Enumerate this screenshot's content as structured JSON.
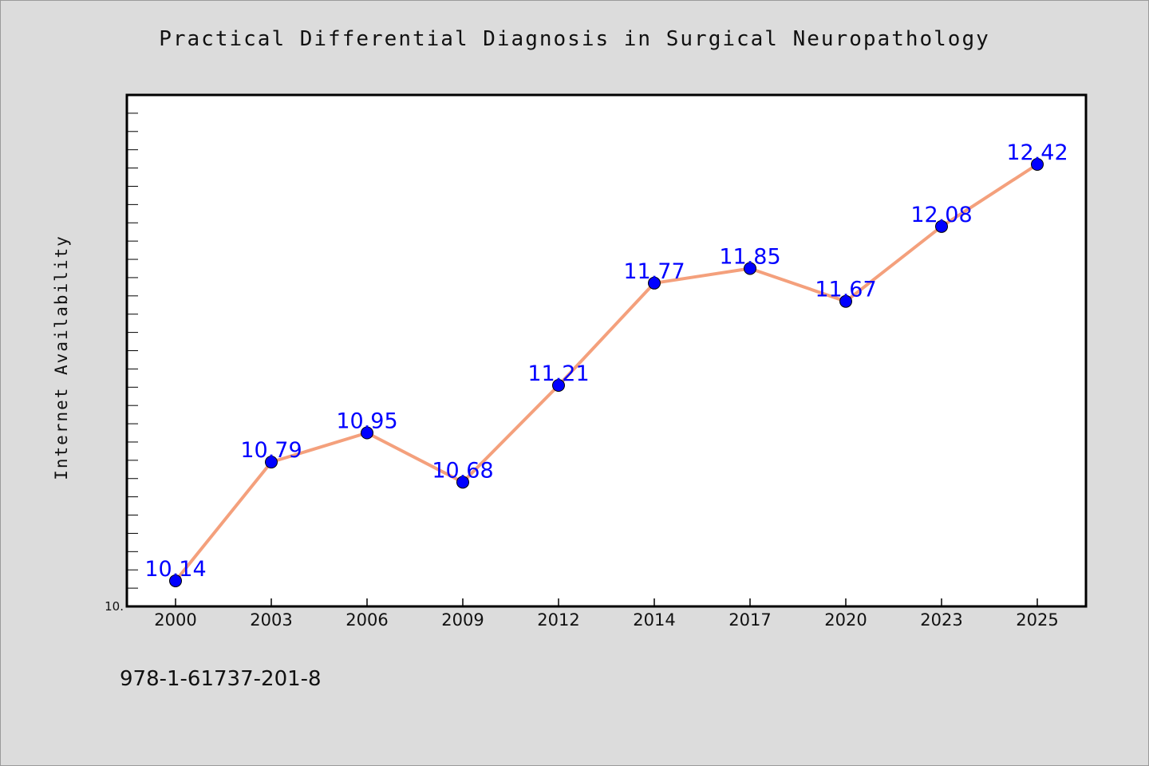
{
  "chart_data": {
    "type": "line",
    "title": "Practical Differential Diagnosis in Surgical Neuropathology",
    "xlabel": "",
    "ylabel": "Internet Availability",
    "x": [
      "2000",
      "2003",
      "2006",
      "2009",
      "2012",
      "2014",
      "2017",
      "2020",
      "2023",
      "2025"
    ],
    "series": [
      {
        "values": [
          10.14,
          10.79,
          10.95,
          10.68,
          11.21,
          11.77,
          11.85,
          11.67,
          12.08,
          12.42
        ]
      }
    ],
    "data_labels": [
      "10.14",
      "10.79",
      "10.95",
      "10.68",
      "11.21",
      "11.77",
      "11.85",
      "11.67",
      "12.08",
      "12.42"
    ],
    "ylim": [
      10.0,
      12.8
    ],
    "y_tick_label": "10.",
    "grid": false,
    "legend": "none",
    "colors": {
      "line": "#f4a07c",
      "marker": "#0000ff",
      "label": "#0000ff",
      "background": "#dcdcdc",
      "plot_bg": "#ffffff"
    }
  },
  "footnote": "978-1-61737-201-8"
}
